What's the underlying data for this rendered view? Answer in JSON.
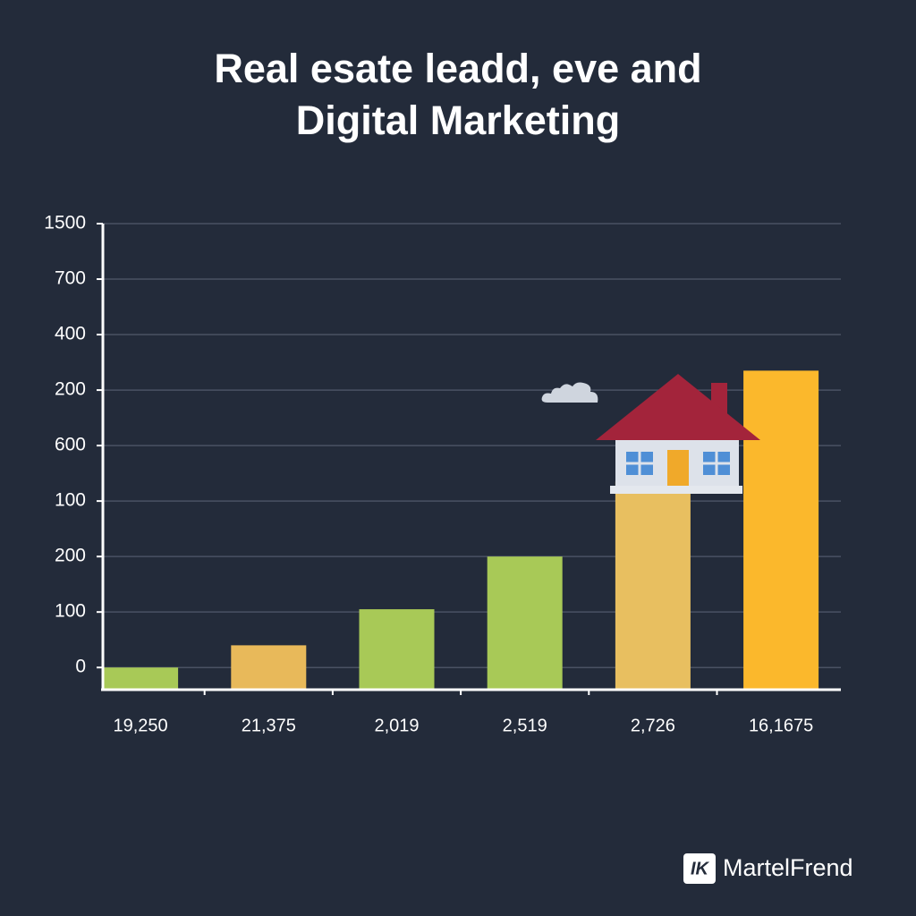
{
  "chart_data": {
    "type": "bar",
    "title": "Real esate leadd, eve and Digital Marketing",
    "categories": [
      "19,250",
      "21,375",
      "2,019",
      "2,519",
      "2,726",
      "16,1675"
    ],
    "values": [
      0,
      0.4,
      1.05,
      2.0,
      3.35,
      5.35
    ],
    "colors": [
      "#a8c957",
      "#e8b95a",
      "#a8c957",
      "#a8c957",
      "#e8bf60",
      "#fbb82c"
    ],
    "ylim": [
      -0.4,
      8
    ],
    "yticks": [
      {
        "value": 8,
        "label": "1500"
      },
      {
        "value": 7,
        "label": "700"
      },
      {
        "value": 6,
        "label": "400"
      },
      {
        "value": 5,
        "label": "200"
      },
      {
        "value": 4,
        "label": "600"
      },
      {
        "value": 3,
        "label": "100"
      },
      {
        "value": 2,
        "label": "200"
      },
      {
        "value": 1,
        "label": "100"
      },
      0
    ],
    "grid": true
  },
  "watermark": {
    "icon": "IK",
    "name": "MartelFrend"
  }
}
